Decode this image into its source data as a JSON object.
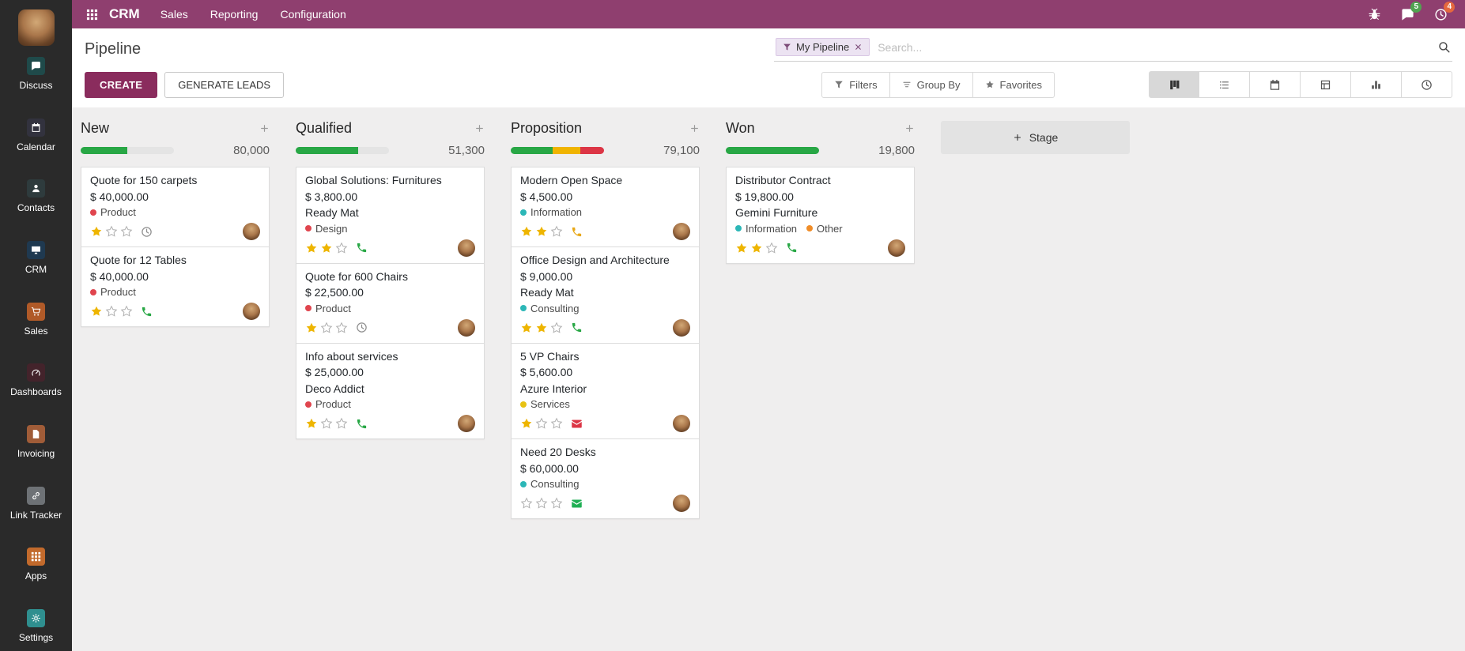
{
  "navbar": {
    "app_name": "CRM",
    "menus": [
      "Sales",
      "Reporting",
      "Configuration"
    ],
    "tray": {
      "messages_badge": "5",
      "activities_badge": "4"
    }
  },
  "sidebar": {
    "items": [
      {
        "label": "Discuss",
        "icon": "chat",
        "bg": "#1f4a4a"
      },
      {
        "label": "Calendar",
        "icon": "calendar",
        "bg": "#32323e"
      },
      {
        "label": "Contacts",
        "icon": "contacts",
        "bg": "#2e3b3d"
      },
      {
        "label": "CRM",
        "icon": "crm",
        "bg": "#1f3950"
      },
      {
        "label": "Sales",
        "icon": "sales",
        "bg": "#b05a28"
      },
      {
        "label": "Dashboards",
        "icon": "dashboards",
        "bg": "#43232b"
      },
      {
        "label": "Invoicing",
        "icon": "invoicing",
        "bg": "#a05c38"
      },
      {
        "label": "Link Tracker",
        "icon": "link",
        "bg": "#6e7276"
      },
      {
        "label": "Apps",
        "icon": "grid",
        "bg": "#c26a2c"
      },
      {
        "label": "Settings",
        "icon": "gear",
        "bg": "#2f8f8f"
      }
    ]
  },
  "control_panel": {
    "title": "Pipeline",
    "create_label": "CREATE",
    "generate_label": "GENERATE LEADS",
    "facet_label": "My Pipeline",
    "search_placeholder": "Search...",
    "filter_buttons": [
      {
        "label": "Filters",
        "icon": "funnel"
      },
      {
        "label": "Group By",
        "icon": "bars"
      },
      {
        "label": "Favorites",
        "icon": "star"
      }
    ],
    "views": [
      {
        "name": "kanban",
        "icon": "kanban",
        "active": true
      },
      {
        "name": "list",
        "icon": "list",
        "active": false
      },
      {
        "name": "calendar",
        "icon": "calendar",
        "active": false
      },
      {
        "name": "pivot",
        "icon": "pivot",
        "active": false
      },
      {
        "name": "graph",
        "icon": "graph",
        "active": false
      },
      {
        "name": "activity",
        "icon": "clock",
        "active": false
      }
    ]
  },
  "kanban": {
    "add_stage_label": "Stage",
    "columns": [
      {
        "name": "New",
        "counter": "80,000",
        "progress": [
          {
            "color": "#28a745",
            "pct": 50
          },
          {
            "color": "#e4e4e4",
            "pct": 50
          }
        ],
        "cards": [
          {
            "title": "Quote for 150 carpets",
            "amount": "$ 40,000.00",
            "partner": "",
            "tags": [
              {
                "label": "Product",
                "color": "#e0454e"
              }
            ],
            "stars": 1,
            "activity": {
              "icon": "clock",
              "color": "#8f8f8f"
            }
          },
          {
            "title": "Quote for 12 Tables",
            "amount": "$ 40,000.00",
            "partner": "",
            "tags": [
              {
                "label": "Product",
                "color": "#e0454e"
              }
            ],
            "stars": 1,
            "activity": {
              "icon": "phone",
              "color": "#28a745"
            }
          }
        ]
      },
      {
        "name": "Qualified",
        "counter": "51,300",
        "progress": [
          {
            "color": "#28a745",
            "pct": 66.7
          },
          {
            "color": "#e4e4e4",
            "pct": 33.3
          }
        ],
        "cards": [
          {
            "title": "Global Solutions: Furnitures",
            "amount": "$ 3,800.00",
            "partner": "Ready Mat",
            "tags": [
              {
                "label": "Design",
                "color": "#e0454e"
              }
            ],
            "stars": 2,
            "activity": {
              "icon": "phone",
              "color": "#28a745"
            }
          },
          {
            "title": "Quote for 600 Chairs",
            "amount": "$ 22,500.00",
            "partner": "",
            "tags": [
              {
                "label": "Product",
                "color": "#e0454e"
              }
            ],
            "stars": 1,
            "activity": {
              "icon": "clock",
              "color": "#8f8f8f"
            }
          },
          {
            "title": "Info about services",
            "amount": "$ 25,000.00",
            "partner": "Deco Addict",
            "tags": [
              {
                "label": "Product",
                "color": "#e0454e"
              }
            ],
            "stars": 1,
            "activity": {
              "icon": "phone",
              "color": "#28a745"
            }
          }
        ]
      },
      {
        "name": "Proposition",
        "counter": "79,100",
        "progress": [
          {
            "color": "#28a745",
            "pct": 45
          },
          {
            "color": "#f0b400",
            "pct": 30
          },
          {
            "color": "#dc3545",
            "pct": 25
          }
        ],
        "cards": [
          {
            "title": "Modern Open Space",
            "amount": "$ 4,500.00",
            "partner": "",
            "tags": [
              {
                "label": "Information",
                "color": "#2cb7b7"
              }
            ],
            "stars": 2,
            "activity": {
              "icon": "phone",
              "color": "#e8a817"
            }
          },
          {
            "title": "Office Design and Architecture",
            "amount": "$ 9,000.00",
            "partner": "Ready Mat",
            "tags": [
              {
                "label": "Consulting",
                "color": "#2cb7b7"
              }
            ],
            "stars": 2,
            "activity": {
              "icon": "phone",
              "color": "#28a745"
            }
          },
          {
            "title": "5 VP Chairs",
            "amount": "$ 5,600.00",
            "partner": "Azure Interior",
            "tags": [
              {
                "label": "Services",
                "color": "#e8c213"
              }
            ],
            "stars": 1,
            "activity": {
              "icon": "envelope",
              "color": "#dc3545"
            }
          },
          {
            "title": "Need 20 Desks",
            "amount": "$ 60,000.00",
            "partner": "",
            "tags": [
              {
                "label": "Consulting",
                "color": "#2cb7b7"
              }
            ],
            "stars": 0,
            "activity": {
              "icon": "envelope",
              "color": "#1faf54"
            }
          }
        ]
      },
      {
        "name": "Won",
        "counter": "19,800",
        "progress": [
          {
            "color": "#28a745",
            "pct": 100
          }
        ],
        "cards": [
          {
            "title": "Distributor Contract",
            "amount": "$ 19,800.00",
            "partner": "Gemini Furniture",
            "tags": [
              {
                "label": "Information",
                "color": "#2cb7b7"
              },
              {
                "label": "Other",
                "color": "#f08d28"
              }
            ],
            "stars": 2,
            "activity": {
              "icon": "phone",
              "color": "#28a745"
            }
          }
        ]
      }
    ]
  },
  "colors": {
    "navbar_bg": "#8f3f6f",
    "create_btn": "#8a2c5d",
    "star_filled": "#eeb500",
    "messages_badge_bg": "#51a351",
    "activities_badge_bg": "#e5683e"
  }
}
